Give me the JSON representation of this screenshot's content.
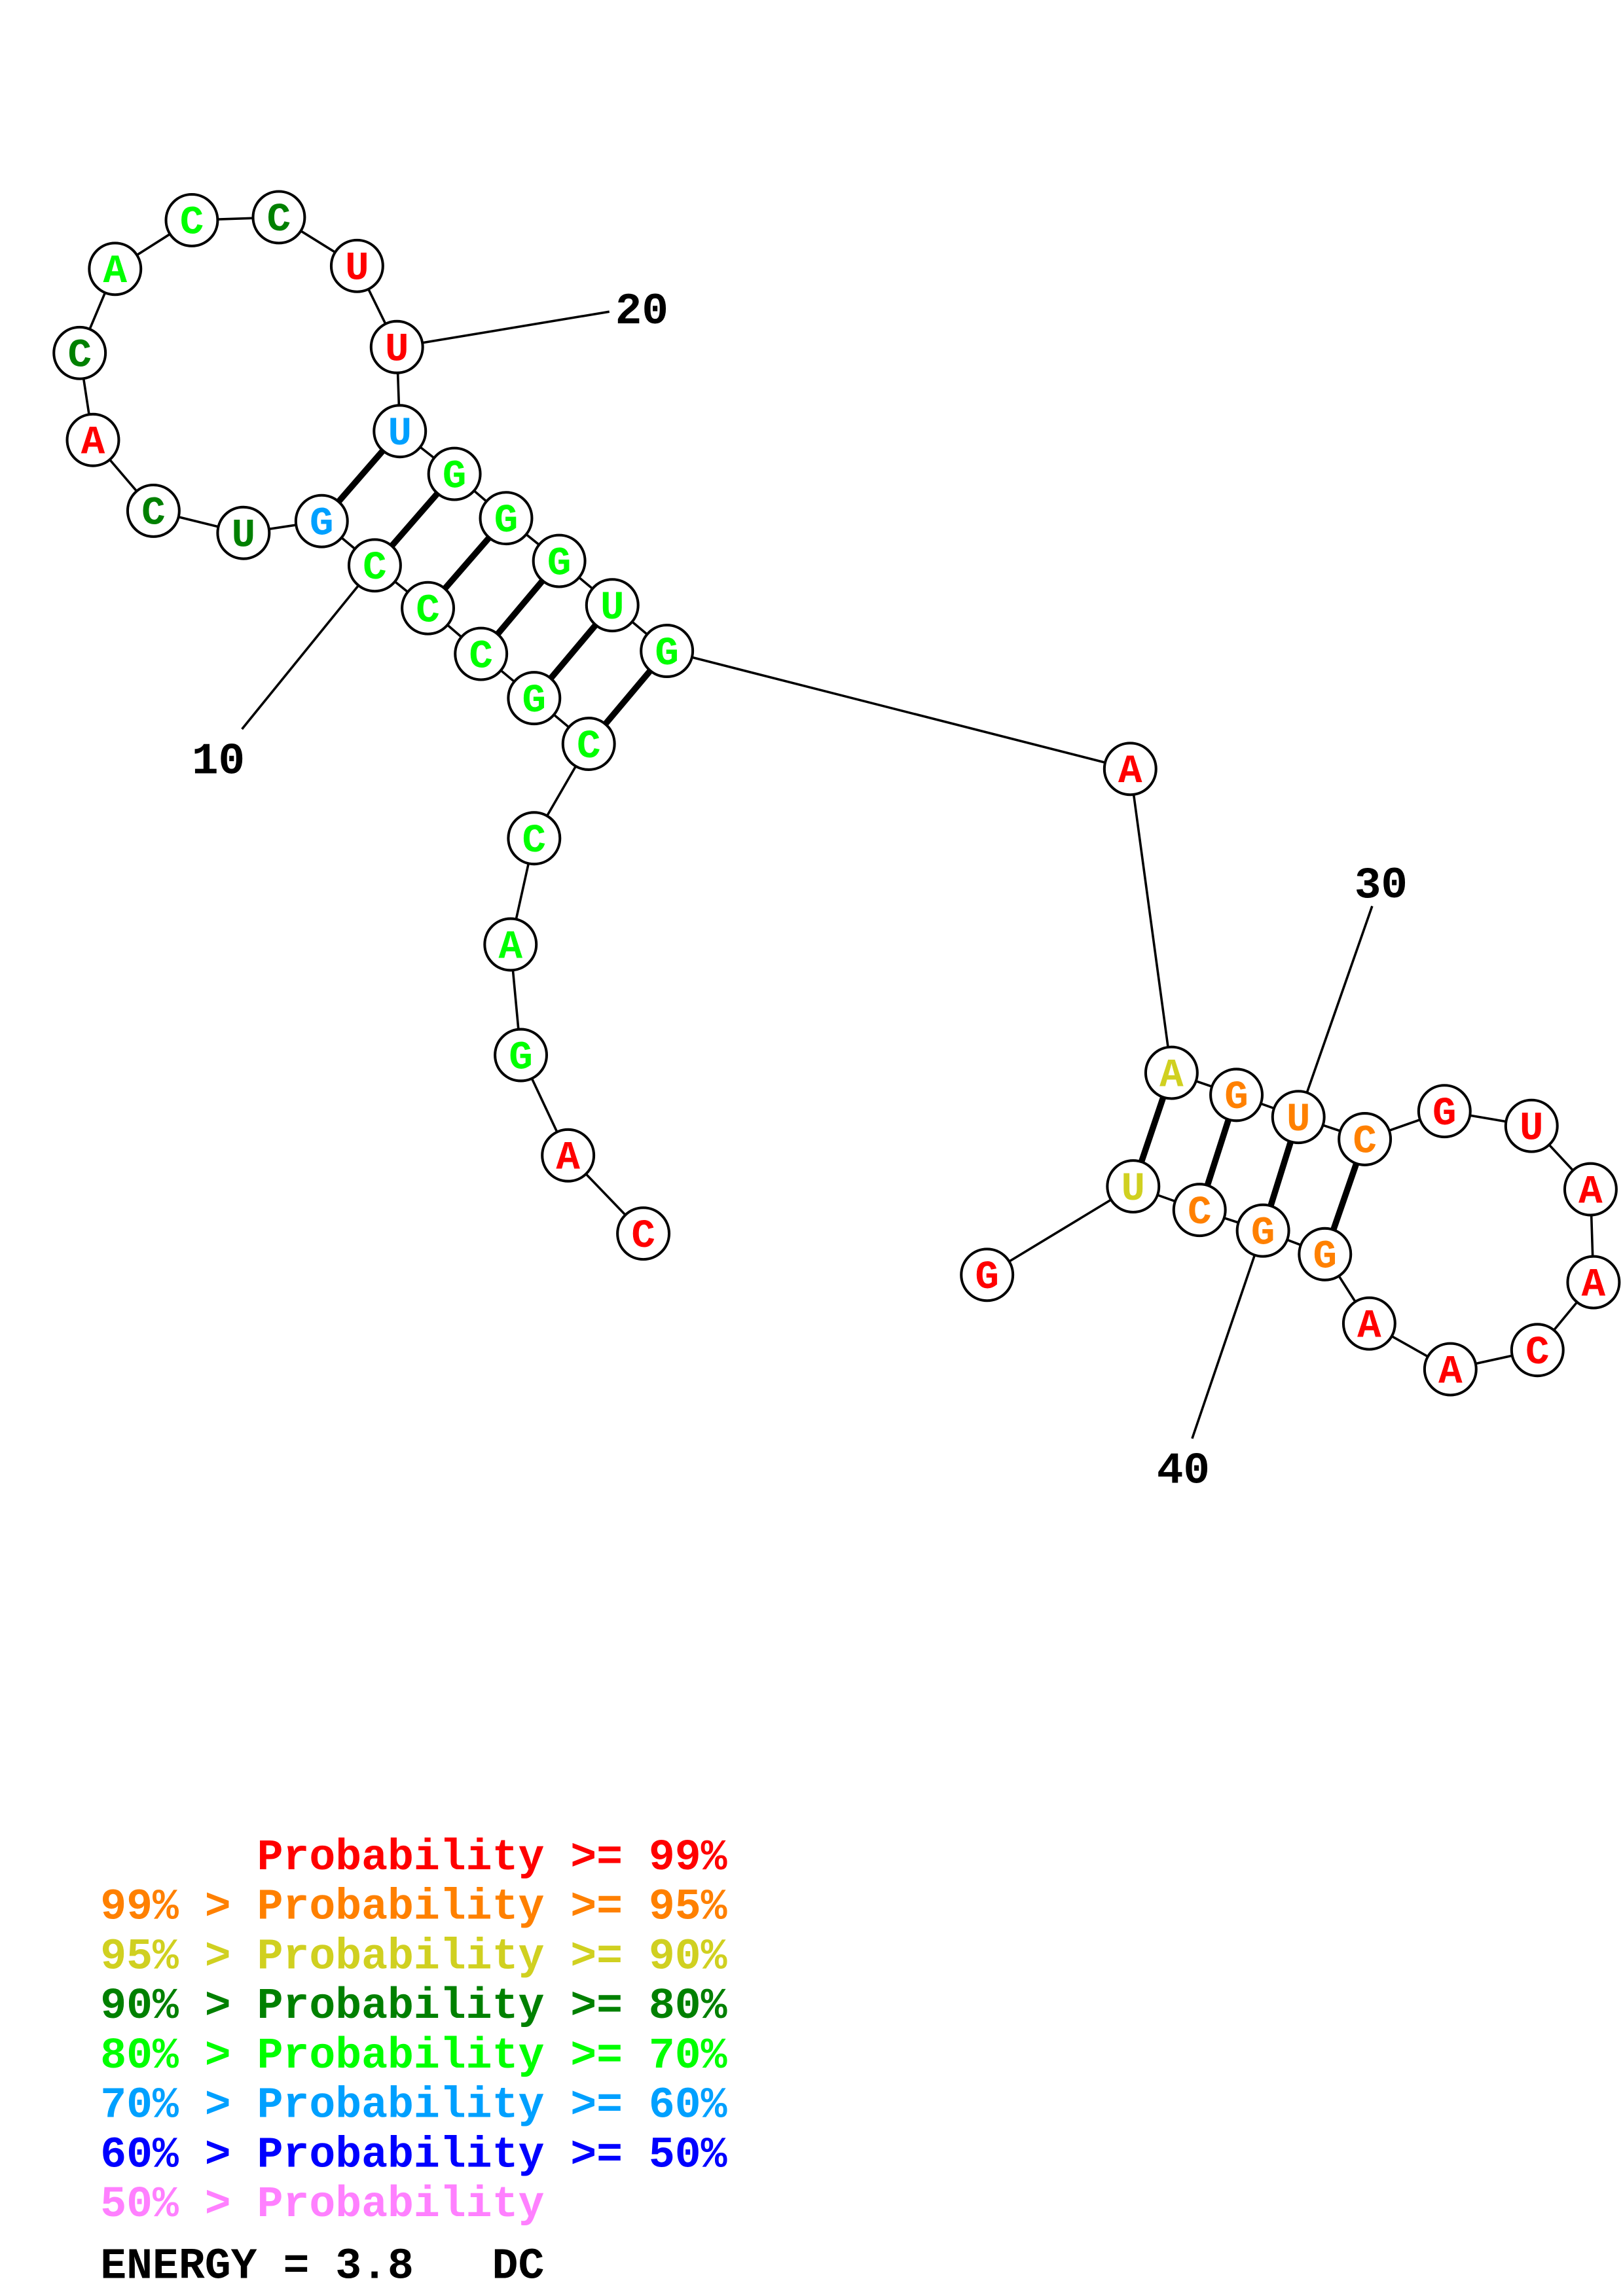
{
  "structure": {
    "sequence": "CAGACCGCCCGUCACACCUUUGGGUGAAGUCGUAACAAGGCUG",
    "probability_class": [
      "p99",
      "p99",
      "p70",
      "p70",
      "p70",
      "p70",
      "p70",
      "p70",
      "p70",
      "p70",
      "p60",
      "p80",
      "p80",
      "p99",
      "p80",
      "p70",
      "p70",
      "p80",
      "p99",
      "p99",
      "p60",
      "p70",
      "p70",
      "p70",
      "p70",
      "p70",
      "p99",
      "p90",
      "p95",
      "p95",
      "p95",
      "p99",
      "p99",
      "p99",
      "p99",
      "p99",
      "p99",
      "p99",
      "p95",
      "p95",
      "p95",
      "p90",
      "p99"
    ],
    "base_pairs": [
      [
        6,
        26
      ],
      [
        7,
        25
      ],
      [
        8,
        24
      ],
      [
        9,
        23
      ],
      [
        10,
        22
      ],
      [
        11,
        21
      ],
      [
        28,
        42
      ],
      [
        29,
        41
      ],
      [
        30,
        40
      ],
      [
        31,
        39
      ]
    ],
    "position_labels": [
      "10",
      "20",
      "30",
      "40"
    ]
  },
  "colors": {
    "p99": "#ff0000",
    "p95": "#ff8000",
    "p90": "#d0d020",
    "p80": "#008000",
    "p70": "#00ff00",
    "p60": "#00a0ff",
    "p50": "#0000ff",
    "plow": "#ff80ff"
  },
  "legend": {
    "rows": [
      {
        "prefix": "",
        "text": "Probability >= 99%",
        "color_key": "p99"
      },
      {
        "prefix": "99% > ",
        "text": "Probability >= 95%",
        "color_key": "p95"
      },
      {
        "prefix": "95% > ",
        "text": "Probability >= 90%",
        "color_key": "p90"
      },
      {
        "prefix": "90% > ",
        "text": "Probability >= 80%",
        "color_key": "p80"
      },
      {
        "prefix": "80% > ",
        "text": "Probability >= 70%",
        "color_key": "p70"
      },
      {
        "prefix": "70% > ",
        "text": "Probability >= 60%",
        "color_key": "p60"
      },
      {
        "prefix": "60% > ",
        "text": "Probability >= 50%",
        "color_key": "p50"
      },
      {
        "prefix": "50% > ",
        "text": "Probability",
        "color_key": "plow"
      }
    ],
    "energy": "ENERGY = 3.8   DC"
  }
}
